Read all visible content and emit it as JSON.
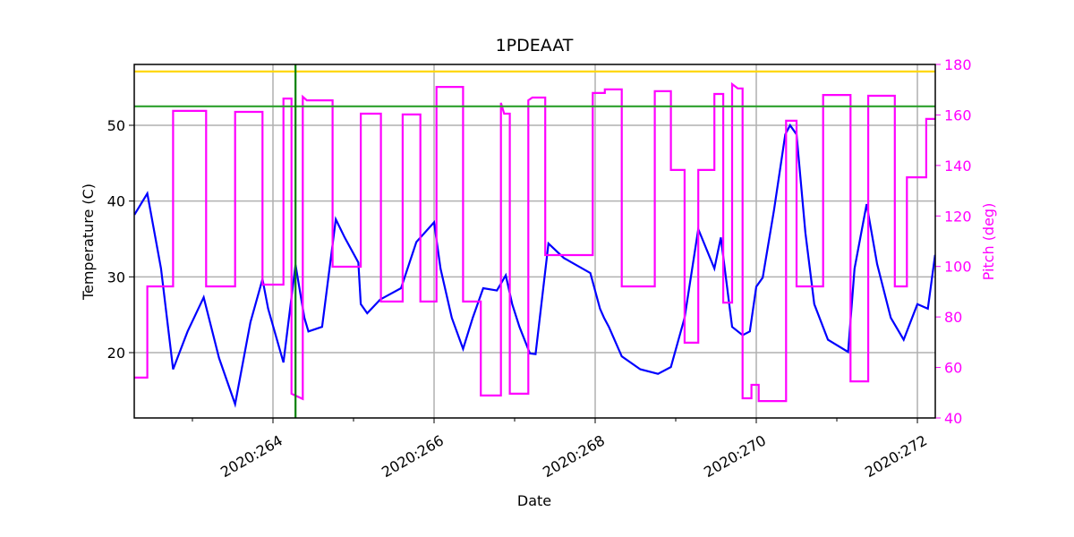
{
  "chart_data": {
    "type": "line",
    "title": "1PDEAAT",
    "xlabel": "Date",
    "ylabel": "Temperature (C)",
    "y2label": "Pitch (deg)",
    "y2color": "#ff00ff",
    "xlim": [
      262.278,
      272.222
    ],
    "xticks": [
      {
        "value": 264,
        "label": "2020:264"
      },
      {
        "value": 266,
        "label": "2020:266"
      },
      {
        "value": 268,
        "label": "2020:268"
      },
      {
        "value": 270,
        "label": "2020:270"
      },
      {
        "value": 272,
        "label": "2020:272"
      }
    ],
    "xminorticks": [
      263,
      265,
      267,
      269,
      271
    ],
    "ylim": [
      11.38,
      58.03
    ],
    "yticks": [
      20,
      30,
      40,
      50
    ],
    "y2lim": [
      40,
      180
    ],
    "y2ticks": [
      40,
      60,
      80,
      100,
      120,
      140,
      160,
      180
    ],
    "grid": true,
    "hlines": [
      {
        "value": 57.1,
        "color": "#ffd700"
      },
      {
        "value": 52.5,
        "color": "#2ca02c"
      }
    ],
    "vlines": [
      {
        "value": 264.28,
        "color": "#008000"
      }
    ],
    "series": [
      {
        "color": "#0000ff",
        "axis": "y",
        "x": [
          262.28,
          262.44,
          262.61,
          262.76,
          262.94,
          263.14,
          263.33,
          263.53,
          263.72,
          263.87,
          263.94,
          264.13,
          264.28,
          264.39,
          264.44,
          264.61,
          264.78,
          264.89,
          265.06,
          265.09,
          265.17,
          265.33,
          265.59,
          265.78,
          266.0,
          266.08,
          266.22,
          266.36,
          266.48,
          266.61,
          266.78,
          266.89,
          266.97,
          267.06,
          267.19,
          267.26,
          267.42,
          267.61,
          267.94,
          268.06,
          268.11,
          268.17,
          268.33,
          268.56,
          268.78,
          268.94,
          269.11,
          269.28,
          269.48,
          269.56,
          269.7,
          269.83,
          269.92,
          270.0,
          270.08,
          270.22,
          270.36,
          270.42,
          270.5,
          270.61,
          270.72,
          270.89,
          271.14,
          271.22,
          271.37,
          271.5,
          271.67,
          271.83,
          272.0,
          272.13,
          272.22
        ],
        "values": [
          38.2,
          41.0,
          31.1,
          17.8,
          22.8,
          27.3,
          19.3,
          13.2,
          24.0,
          29.7,
          25.8,
          18.7,
          31.6,
          24.6,
          22.8,
          23.4,
          37.6,
          35.2,
          31.9,
          26.4,
          25.2,
          27.0,
          28.5,
          34.6,
          37.2,
          31.1,
          24.6,
          20.5,
          24.6,
          28.5,
          28.2,
          30.2,
          26.4,
          23.4,
          19.9,
          19.8,
          34.4,
          32.5,
          30.5,
          25.8,
          24.6,
          23.4,
          19.5,
          17.8,
          17.2,
          18.1,
          24.6,
          36.3,
          31.1,
          35.2,
          23.4,
          22.3,
          22.8,
          28.7,
          29.9,
          38.8,
          48.8,
          50.0,
          48.8,
          35.8,
          26.4,
          21.7,
          20.1,
          31.1,
          39.6,
          31.7,
          24.6,
          21.7,
          26.4,
          25.8,
          32.9
        ]
      },
      {
        "color": "#ff00ff",
        "axis": "y2",
        "x": [
          262.28,
          262.44,
          262.44,
          262.76,
          262.76,
          263.17,
          263.17,
          263.53,
          263.53,
          263.87,
          263.87,
          264.13,
          264.13,
          264.23,
          264.23,
          264.37,
          264.37,
          264.42,
          264.74,
          264.74,
          265.09,
          265.09,
          265.34,
          265.34,
          265.61,
          265.61,
          265.83,
          265.83,
          266.03,
          266.03,
          266.36,
          266.36,
          266.58,
          266.58,
          266.83,
          266.83,
          266.87,
          266.94,
          266.94,
          267.17,
          267.17,
          267.22,
          267.38,
          267.38,
          267.97,
          267.97,
          268.12,
          268.12,
          268.33,
          268.33,
          268.74,
          268.74,
          268.94,
          268.94,
          269.11,
          269.11,
          269.28,
          269.28,
          269.48,
          269.48,
          269.59,
          269.59,
          269.7,
          269.7,
          269.77,
          269.83,
          269.83,
          269.94,
          269.94,
          270.03,
          270.03,
          270.37,
          270.37,
          270.5,
          270.5,
          270.83,
          270.83,
          271.17,
          271.17,
          271.39,
          271.39,
          271.72,
          271.72,
          271.87,
          271.87,
          272.11,
          272.11,
          272.22
        ],
        "values": [
          56.0,
          56.0,
          92.1,
          92.1,
          161.6,
          161.6,
          92.1,
          92.1,
          161.2,
          161.2,
          92.8,
          92.8,
          166.5,
          166.5,
          49.6,
          47.5,
          167.2,
          165.8,
          165.8,
          99.9,
          99.9,
          160.5,
          160.5,
          86.1,
          86.1,
          160.2,
          160.2,
          86.1,
          86.1,
          171.1,
          171.1,
          86.1,
          86.1,
          48.9,
          48.9,
          164.8,
          160.5,
          160.5,
          49.6,
          49.6,
          165.8,
          166.9,
          166.9,
          104.5,
          104.5,
          168.7,
          168.7,
          170.1,
          170.1,
          92.1,
          92.1,
          169.4,
          169.4,
          138.2,
          138.2,
          69.8,
          69.8,
          138.2,
          138.2,
          168.3,
          168.3,
          85.7,
          85.7,
          172.2,
          170.5,
          170.5,
          47.8,
          47.8,
          53.1,
          53.1,
          46.7,
          46.7,
          157.7,
          157.7,
          92.1,
          92.1,
          167.9,
          167.9,
          54.5,
          54.5,
          167.6,
          167.6,
          92.1,
          92.1,
          135.3,
          135.3,
          158.4,
          158.4
        ]
      }
    ]
  }
}
